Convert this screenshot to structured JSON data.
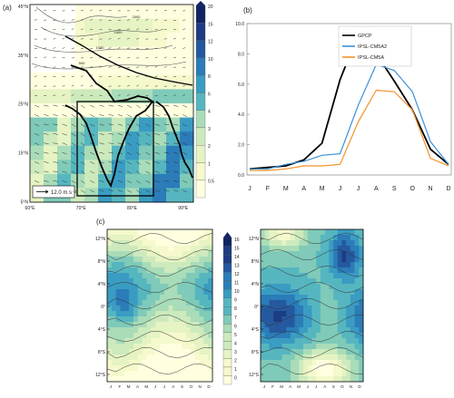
{
  "panel_labels": {
    "a": "(a)",
    "b": "(b)",
    "c": "(c)"
  },
  "chart_data": [
    {
      "type": "heatmap",
      "panel": "a",
      "x_ticks": [
        "60°E",
        "70°E",
        "80°E",
        "90°E"
      ],
      "y_ticks": [
        "45°N",
        "35°N",
        "25°N",
        "15°N",
        "5°N"
      ],
      "colorbar_ticks": [
        "20",
        "15",
        "12",
        "10",
        "8",
        "6",
        "4",
        "3",
        "2",
        "1",
        "0.5"
      ],
      "contour_labels": [
        "2000",
        "1500",
        "1000",
        "500"
      ],
      "vector_key": "12.0 m s⁻¹",
      "region_box": {
        "lon": [
          70,
          90
        ],
        "lat": [
          5,
          25
        ]
      }
    },
    {
      "type": "line",
      "panel": "b",
      "categories": [
        "J",
        "F",
        "M",
        "A",
        "M",
        "J",
        "J",
        "A",
        "S",
        "O",
        "N",
        "D"
      ],
      "y_ticks": [
        "0.0",
        "2.0",
        "4.0",
        "6.0",
        "8.0",
        "10.0"
      ],
      "ylim": [
        0,
        10
      ],
      "legend_position": "top-right",
      "series": [
        {
          "name": "GPCP",
          "color": "#000000",
          "values": [
            0.4,
            0.5,
            0.6,
            1.0,
            2.1,
            6.3,
            9.3,
            8.0,
            6.2,
            4.3,
            1.7,
            0.7
          ]
        },
        {
          "name": "IPSL-CM5A2",
          "color": "#3a8fd8",
          "values": [
            0.4,
            0.4,
            0.7,
            0.9,
            1.3,
            1.4,
            4.6,
            7.3,
            6.9,
            5.5,
            2.2,
            0.7
          ]
        },
        {
          "name": "IPSL-CM5A",
          "color": "#f5922a",
          "values": [
            0.3,
            0.3,
            0.4,
            0.6,
            0.6,
            0.7,
            3.5,
            5.6,
            5.5,
            4.3,
            1.1,
            0.6
          ]
        }
      ]
    },
    {
      "type": "heatmap",
      "panel": "c",
      "x_ticks": [
        "J",
        "F",
        "M",
        "A",
        "M",
        "J",
        "J",
        "A",
        "S",
        "O",
        "N",
        "D"
      ],
      "y_ticks": [
        "12°N",
        "8°N",
        "4°N",
        "0°",
        "4°S",
        "8°S",
        "12°S"
      ],
      "colorbar_ticks": [
        "16",
        "15",
        "14",
        "13",
        "12",
        "11",
        "10",
        "9",
        "8",
        "7",
        "6",
        "5",
        "4",
        "3",
        "2",
        "1",
        "0"
      ]
    }
  ]
}
